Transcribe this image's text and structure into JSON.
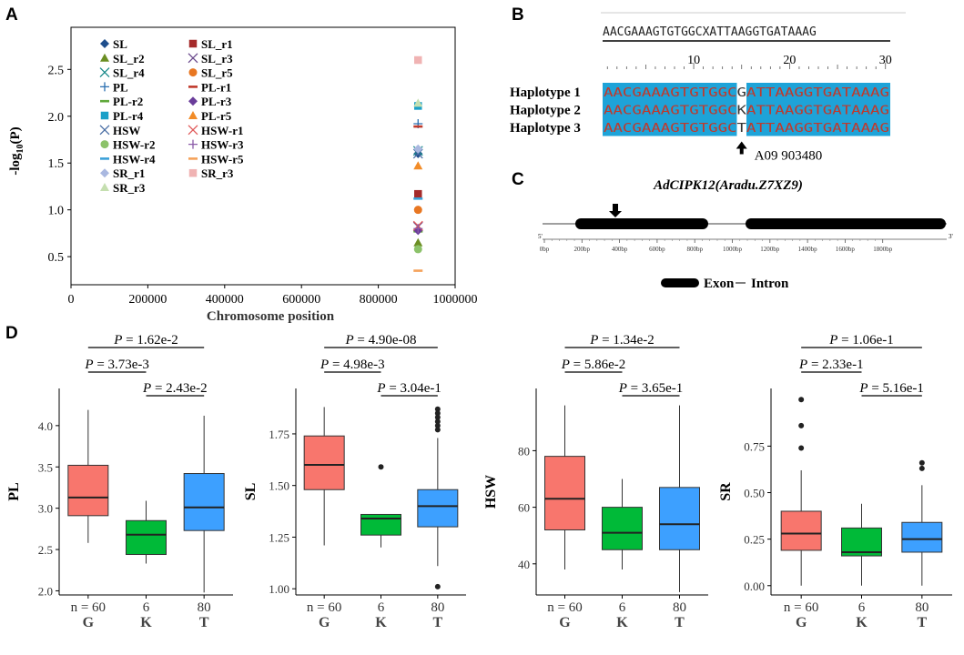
{
  "panels": {
    "a": "A",
    "b": "B",
    "c": "C",
    "d": "D"
  },
  "panel_a": {
    "chart_data": {
      "type": "scatter",
      "xlabel": "Chromosome position",
      "ylabel": "-log10(P)",
      "ylabel_parts": {
        "main": "-log",
        "sub": "10",
        "tail": "(P)"
      },
      "xlim": [
        0,
        1000000
      ],
      "ylim": [
        0.2,
        2.95
      ],
      "xticks": [
        0,
        200000,
        400000,
        600000,
        800000,
        1000000
      ],
      "xtick_labels": [
        "0",
        "200000",
        "400000",
        "600000",
        "800000",
        "1000000"
      ],
      "yticks": [
        0.5,
        1.0,
        1.5,
        2.0,
        2.5
      ],
      "ytick_labels": [
        "0.5",
        "1.0",
        "1.5",
        "2.0",
        "2.5"
      ],
      "legend_position": "top-left",
      "series": [
        {
          "name": "SL",
          "color": "#1f4e8c",
          "marker": "diamond",
          "x": 903480,
          "y": 1.6
        },
        {
          "name": "SL_r1",
          "color": "#a52a2a",
          "marker": "square",
          "x": 903480,
          "y": 1.17
        },
        {
          "name": "SL_r2",
          "color": "#6b8e23",
          "marker": "triangle",
          "x": 903480,
          "y": 0.65
        },
        {
          "name": "SL_r3",
          "color": "#6a4a8c",
          "marker": "x",
          "x": 903480,
          "y": 0.82
        },
        {
          "name": "SL_r4",
          "color": "#1a8a8a",
          "marker": "x",
          "x": 903480,
          "y": 1.63
        },
        {
          "name": "SL_r5",
          "color": "#e87722",
          "marker": "circle",
          "x": 903480,
          "y": 1.0
        },
        {
          "name": "PL",
          "color": "#2a6fb0",
          "marker": "plus",
          "x": 903480,
          "y": 1.92
        },
        {
          "name": "PL-r1",
          "color": "#c0392b",
          "marker": "dash",
          "x": 903480,
          "y": 1.89
        },
        {
          "name": "PL-r2",
          "color": "#5fa83a",
          "marker": "dash",
          "x": 903480,
          "y": 0.77
        },
        {
          "name": "PL-r3",
          "color": "#6a3d9a",
          "marker": "diamond",
          "x": 903480,
          "y": 0.78
        },
        {
          "name": "PL-r4",
          "color": "#1aa0c8",
          "marker": "square",
          "x": 903480,
          "y": 2.11
        },
        {
          "name": "PL-r5",
          "color": "#f28c28",
          "marker": "triangle",
          "x": 903480,
          "y": 1.47
        },
        {
          "name": "HSW",
          "color": "#4a6fa5",
          "marker": "x",
          "x": 903480,
          "y": 1.6
        },
        {
          "name": "HSW-r1",
          "color": "#e05a5a",
          "marker": "x",
          "x": 903480,
          "y": 0.83
        },
        {
          "name": "HSW-r2",
          "color": "#8cc26a",
          "marker": "circle",
          "x": 903480,
          "y": 0.58
        },
        {
          "name": "HSW-r3",
          "color": "#8a5aa8",
          "marker": "plus",
          "x": 903480,
          "y": 0.8
        },
        {
          "name": "HSW-r4",
          "color": "#3aa0d8",
          "marker": "dash",
          "x": 903480,
          "y": 1.12
        },
        {
          "name": "HSW-r5",
          "color": "#f5a25a",
          "marker": "dash",
          "x": 903480,
          "y": 0.35
        },
        {
          "name": "SR_r1",
          "color": "#a9b8e0",
          "marker": "diamond",
          "x": 903480,
          "y": 1.65
        },
        {
          "name": "SR_r3",
          "color": "#f0b3b3",
          "marker": "square",
          "x": 903480,
          "y": 2.6
        },
        {
          "name": "SR_r3",
          "color": "#c5dfb0",
          "marker": "triangle",
          "x": 903480,
          "y": 2.14
        }
      ]
    }
  },
  "panel_b": {
    "top_sequence": "AACGAAAGTGTGGCXATTAAGGTGATAAAG",
    "ruler_numbers": [
      "10",
      "20",
      "30"
    ],
    "haplotypes": [
      {
        "label": "Haplotype 1",
        "left": "AACGAAAGTGTGGC",
        "snp": "G",
        "right": "ATTAAGGTGATAAAG"
      },
      {
        "label": "Haplotype 2",
        "left": "AACGAAAGTGTGGC",
        "snp": "K",
        "right": "ATTAAGGTGATAAAG"
      },
      {
        "label": "Haplotype 3",
        "left": "AACGAAAGTGTGGC",
        "snp": "T",
        "right": "ATTAAGGTGATAAAG"
      }
    ],
    "snp_annotation": "A09   903480",
    "highlight_color": "#1ea3d8"
  },
  "panel_c": {
    "gene_name": "AdCIPK12(Aradu.Z7XZ9)",
    "end5": "5'",
    "end3": "3'",
    "scale_labels": [
      "0bp",
      "200bp",
      "400bp",
      "600bp",
      "800bp",
      "1000bp",
      "1200bp",
      "1400bp",
      "1600bp",
      "1800bp"
    ],
    "legend_exon": "Exon",
    "legend_intron": "Intron"
  },
  "panel_d": {
    "colors": {
      "G": "#f8766d",
      "K": "#00ba38",
      "T": "#3da0ff"
    },
    "n_label": "n = 60",
    "n_values": [
      "6",
      "80"
    ],
    "categories": [
      "G",
      "K",
      "T"
    ],
    "plots": [
      {
        "ylabel": "PL",
        "yticks": [
          "2.0",
          "2.5",
          "3.0",
          "3.5",
          "4.0"
        ],
        "pvalues": [
          {
            "prefix": "P",
            "text": " = 1.62e-2"
          },
          {
            "prefix": "P",
            "text": " = 3.73e-3"
          },
          {
            "prefix": "P",
            "text": " = 2.43e-2"
          }
        ]
      },
      {
        "ylabel": "SL",
        "yticks": [
          "1.00",
          "1.25",
          "1.50",
          "1.75"
        ],
        "pvalues": [
          {
            "prefix": "P",
            "text": " = 4.90e-08"
          },
          {
            "prefix": "P",
            "text": " = 4.98e-3"
          },
          {
            "prefix": "P",
            "text": " = 3.04e-1"
          }
        ]
      },
      {
        "ylabel": "HSW",
        "yticks": [
          "40",
          "60",
          "80"
        ],
        "pvalues": [
          {
            "prefix": "P",
            "text": " = 1.34e-2"
          },
          {
            "prefix": "P",
            "text": " = 5.86e-2"
          },
          {
            "prefix": "P",
            "text": " = 3.65e-1"
          }
        ]
      },
      {
        "ylabel": "SR",
        "yticks": [
          "0.00",
          "0.25",
          "0.50",
          "0.75"
        ],
        "pvalues": [
          {
            "prefix": "P",
            "text": " = 1.06e-1"
          },
          {
            "prefix": "P",
            "text": " = 2.33e-1"
          },
          {
            "prefix": "P",
            "text": " = 5.16e-1"
          }
        ]
      }
    ],
    "chart_data": [
      {
        "type": "box",
        "ylabel": "PL",
        "ylim": [
          1.95,
          4.45
        ],
        "categories": [
          "G",
          "K",
          "T"
        ],
        "n": [
          60,
          6,
          80
        ],
        "boxes": [
          {
            "category": "G",
            "min": 2.58,
            "q1": 2.91,
            "median": 3.13,
            "q3": 3.52,
            "max": 4.19,
            "outliers": []
          },
          {
            "category": "K",
            "min": 2.33,
            "q1": 2.44,
            "median": 2.68,
            "q3": 2.85,
            "max": 3.09,
            "outliers": []
          },
          {
            "category": "T",
            "min": 1.98,
            "q1": 2.73,
            "median": 3.01,
            "q3": 3.42,
            "max": 4.12,
            "outliers": []
          }
        ]
      },
      {
        "type": "box",
        "ylabel": "SL",
        "ylim": [
          0.97,
          1.97
        ],
        "categories": [
          "G",
          "K",
          "T"
        ],
        "n": [
          60,
          6,
          80
        ],
        "boxes": [
          {
            "category": "G",
            "min": 1.21,
            "q1": 1.48,
            "median": 1.6,
            "q3": 1.74,
            "max": 1.88,
            "outliers": []
          },
          {
            "category": "K",
            "min": 1.2,
            "q1": 1.26,
            "median": 1.34,
            "q3": 1.36,
            "max": 1.36,
            "outliers": [
              1.59
            ]
          },
          {
            "category": "T",
            "min": 1.11,
            "q1": 1.3,
            "median": 1.4,
            "q3": 1.48,
            "max": 1.73,
            "outliers": [
              1.01,
              1.77,
              1.79,
              1.81,
              1.83,
              1.85,
              1.87
            ]
          }
        ]
      },
      {
        "type": "box",
        "ylabel": "HSW",
        "ylim": [
          29,
          102
        ],
        "categories": [
          "G",
          "K",
          "T"
        ],
        "n": [
          60,
          6,
          80
        ],
        "boxes": [
          {
            "category": "G",
            "min": 38,
            "q1": 52,
            "median": 63,
            "q3": 78,
            "max": 96,
            "outliers": []
          },
          {
            "category": "K",
            "min": 38,
            "q1": 45,
            "median": 51,
            "q3": 60,
            "max": 70,
            "outliers": []
          },
          {
            "category": "T",
            "min": 30,
            "q1": 45,
            "median": 54,
            "q3": 67,
            "max": 96,
            "outliers": []
          }
        ]
      },
      {
        "type": "box",
        "ylabel": "SR",
        "ylim": [
          -0.05,
          1.06
        ],
        "categories": [
          "G",
          "K",
          "T"
        ],
        "n": [
          60,
          6,
          80
        ],
        "boxes": [
          {
            "category": "G",
            "min": 0.0,
            "q1": 0.19,
            "median": 0.28,
            "q3": 0.4,
            "max": 0.62,
            "outliers": [
              0.74,
              0.86,
              1.0
            ]
          },
          {
            "category": "K",
            "min": 0.0,
            "q1": 0.16,
            "median": 0.18,
            "q3": 0.31,
            "max": 0.44,
            "outliers": []
          },
          {
            "category": "T",
            "min": 0.0,
            "q1": 0.18,
            "median": 0.25,
            "q3": 0.34,
            "max": 0.54,
            "outliers": [
              0.63,
              0.66
            ]
          }
        ]
      }
    ]
  }
}
